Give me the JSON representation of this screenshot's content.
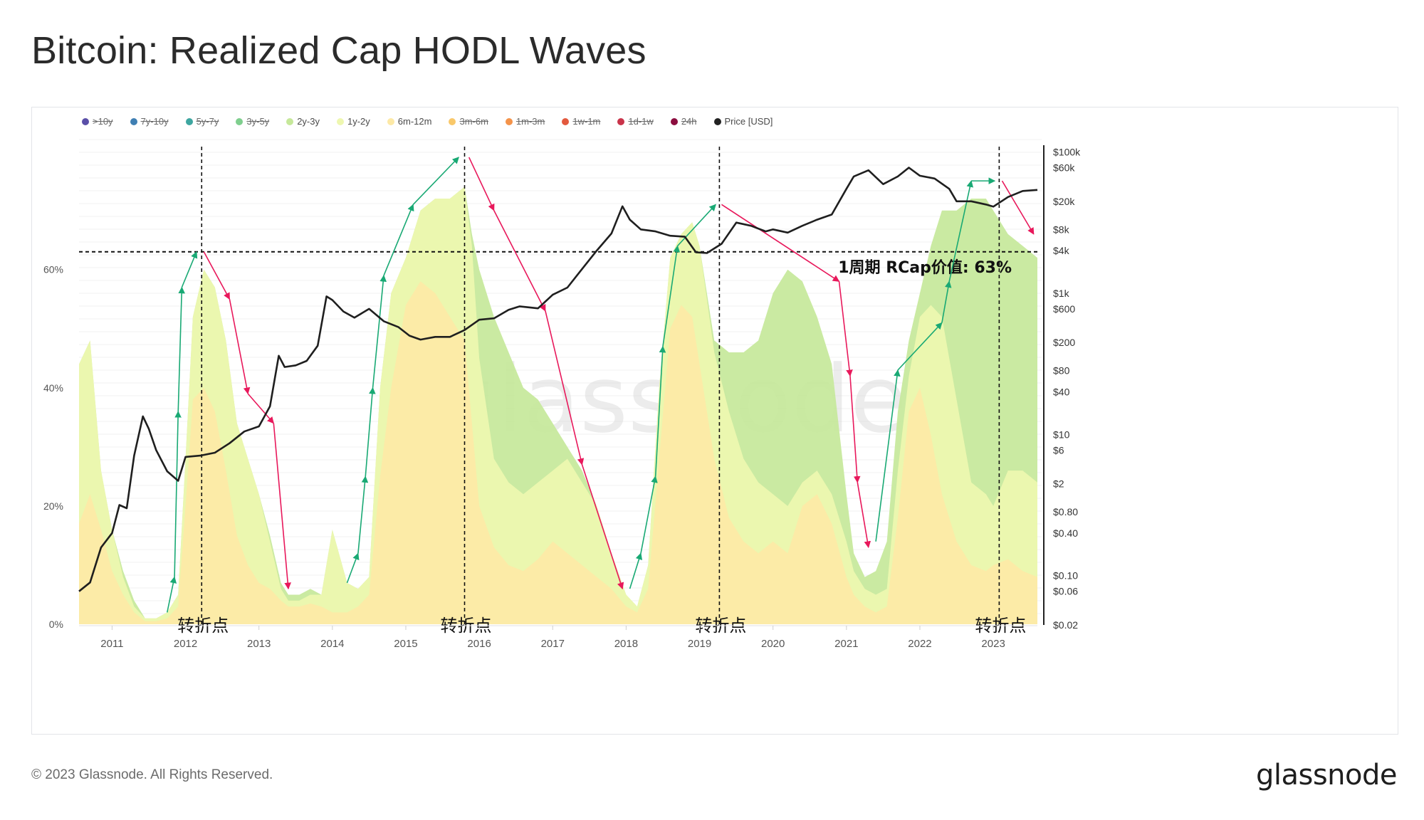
{
  "page": {
    "title": "Bitcoin: Realized Cap HODL Waves",
    "copyright": "© 2023 Glassnode. All Rights Reserved.",
    "logo": "glassnode",
    "watermark": "glassnode"
  },
  "legend": [
    {
      "label": ">10y",
      "color": "#5a4fa8",
      "active": false
    },
    {
      "label": "7y-10y",
      "color": "#3f7fb3",
      "active": false
    },
    {
      "label": "5y-7y",
      "color": "#3ea6a0",
      "active": false
    },
    {
      "label": "3y-5y",
      "color": "#7fcf8e",
      "active": false
    },
    {
      "label": "2y-3y",
      "color": "#c6e89a",
      "active": true
    },
    {
      "label": "1y-2y",
      "color": "#eef7b0",
      "active": true
    },
    {
      "label": "6m-12m",
      "color": "#fde9a6",
      "active": true
    },
    {
      "label": "3m-6m",
      "color": "#f9c86a",
      "active": false
    },
    {
      "label": "1m-3m",
      "color": "#f4934a",
      "active": false
    },
    {
      "label": "1w-1m",
      "color": "#e3593e",
      "active": false
    },
    {
      "label": "1d-1w",
      "color": "#c9344a",
      "active": false
    },
    {
      "label": "24h",
      "color": "#8c0d3f",
      "active": false
    },
    {
      "label": "Price [USD]",
      "color": "#222222",
      "active": true
    }
  ],
  "annotations": {
    "threshold_label": "1周期 RCap价值: 63%",
    "turning_point_label": "转折点",
    "turning_points_x": [
      2012.22,
      2015.8,
      2019.27,
      2023.08
    ],
    "threshold_y": 63
  },
  "chart_data": {
    "type": "area",
    "title": "Bitcoin: Realized Cap HODL Waves",
    "xlim": [
      2010.55,
      2023.6
    ],
    "ylim": [
      0,
      82
    ],
    "x_ticks": [
      "2011",
      "2012",
      "2013",
      "2014",
      "2015",
      "2016",
      "2017",
      "2018",
      "2019",
      "2020",
      "2021",
      "2022",
      "2023"
    ],
    "y_ticks_left": [
      "0%",
      "20%",
      "40%",
      "60%"
    ],
    "y_ticks_right": [
      "$100k",
      "$60k",
      "$20k",
      "$8k",
      "$4k",
      "$1k",
      "$600",
      "$200",
      "$80",
      "$40",
      "$10",
      "$6",
      "$2",
      "$0.80",
      "$0.40",
      "$0.10",
      "$0.06",
      "$0.02"
    ],
    "price_scale": "log",
    "price_range_usd": [
      0.02,
      150000
    ],
    "grid": true,
    "legend_position": "top-left",
    "series": [
      {
        "name": "6m-12m",
        "cumulative": true,
        "x": [
          2010.55,
          2010.7,
          2010.85,
          2011.0,
          2011.15,
          2011.3,
          2011.45,
          2011.6,
          2011.75,
          2011.9,
          2012.0,
          2012.1,
          2012.25,
          2012.4,
          2012.55,
          2012.7,
          2012.85,
          2013.0,
          2013.15,
          2013.3,
          2013.4,
          2013.55,
          2013.7,
          2013.85,
          2014.0,
          2014.2,
          2014.35,
          2014.5,
          2014.65,
          2014.8,
          2015.0,
          2015.2,
          2015.4,
          2015.6,
          2015.8,
          2015.9,
          2016.0,
          2016.2,
          2016.4,
          2016.6,
          2016.8,
          2017.0,
          2017.2,
          2017.4,
          2017.6,
          2017.8,
          2018.0,
          2018.15,
          2018.3,
          2018.45,
          2018.6,
          2018.75,
          2018.9,
          2019.0,
          2019.2,
          2019.4,
          2019.6,
          2019.8,
          2020.0,
          2020.2,
          2020.4,
          2020.6,
          2020.8,
          2021.0,
          2021.1,
          2021.25,
          2021.4,
          2021.55,
          2021.7,
          2021.85,
          2022.0,
          2022.15,
          2022.3,
          2022.5,
          2022.7,
          2022.9,
          2023.0,
          2023.2,
          2023.4,
          2023.6
        ],
        "values": [
          17,
          22,
          16,
          9,
          5,
          2,
          0.5,
          0.5,
          1,
          3,
          20,
          38,
          40,
          36,
          26,
          15,
          10,
          7,
          6,
          4,
          3,
          3,
          3.5,
          3,
          2,
          2,
          3,
          5,
          25,
          40,
          54,
          58,
          56,
          52,
          48,
          34,
          20,
          13,
          10,
          9,
          11,
          14,
          12,
          10,
          8,
          6,
          3,
          2,
          6,
          28,
          50,
          54,
          52,
          44,
          28,
          18,
          14,
          12,
          14,
          12,
          20,
          22,
          17,
          8,
          5,
          3,
          2,
          3,
          18,
          36,
          40,
          32,
          22,
          14,
          10,
          9,
          10,
          11,
          9,
          8
        ]
      },
      {
        "name": "1y-2y",
        "cumulative": true,
        "x": [
          2010.55,
          2010.7,
          2010.85,
          2011.0,
          2011.15,
          2011.3,
          2011.45,
          2011.6,
          2011.75,
          2011.9,
          2012.0,
          2012.1,
          2012.25,
          2012.4,
          2012.55,
          2012.7,
          2012.85,
          2013.0,
          2013.15,
          2013.3,
          2013.4,
          2013.55,
          2013.7,
          2013.85,
          2014.0,
          2014.2,
          2014.35,
          2014.5,
          2014.65,
          2014.8,
          2015.0,
          2015.2,
          2015.4,
          2015.6,
          2015.8,
          2015.9,
          2016.0,
          2016.2,
          2016.4,
          2016.6,
          2016.8,
          2017.0,
          2017.2,
          2017.4,
          2017.6,
          2017.8,
          2018.0,
          2018.15,
          2018.3,
          2018.45,
          2018.6,
          2018.75,
          2018.9,
          2019.0,
          2019.2,
          2019.4,
          2019.6,
          2019.8,
          2020.0,
          2020.2,
          2020.4,
          2020.6,
          2020.8,
          2021.0,
          2021.1,
          2021.25,
          2021.4,
          2021.55,
          2021.7,
          2021.85,
          2022.0,
          2022.15,
          2022.3,
          2022.5,
          2022.7,
          2022.9,
          2023.0,
          2023.2,
          2023.4,
          2023.6
        ],
        "values": [
          44,
          48,
          26,
          16,
          8,
          3,
          1,
          1,
          2,
          5,
          28,
          52,
          60,
          57,
          48,
          34,
          28,
          22,
          14,
          6,
          4,
          4,
          5,
          5,
          16,
          7,
          6,
          8,
          40,
          56,
          62,
          70,
          72,
          72,
          74,
          64,
          45,
          28,
          24,
          22,
          24,
          26,
          28,
          24,
          20,
          12,
          5,
          3,
          10,
          40,
          62,
          66,
          68,
          64,
          46,
          36,
          28,
          24,
          22,
          20,
          24,
          26,
          22,
          14,
          9,
          6,
          5,
          6,
          26,
          42,
          52,
          54,
          52,
          38,
          24,
          22,
          20,
          26,
          26,
          24
        ]
      },
      {
        "name": "2y-3y",
        "cumulative": true,
        "x": [
          2010.55,
          2010.7,
          2010.85,
          2011.0,
          2011.15,
          2011.3,
          2011.45,
          2011.6,
          2011.75,
          2011.9,
          2012.0,
          2012.1,
          2012.25,
          2012.4,
          2012.55,
          2012.7,
          2012.85,
          2013.0,
          2013.15,
          2013.3,
          2013.4,
          2013.55,
          2013.7,
          2013.85,
          2014.0,
          2014.2,
          2014.35,
          2014.5,
          2014.65,
          2014.8,
          2015.0,
          2015.2,
          2015.4,
          2015.6,
          2015.8,
          2015.9,
          2016.0,
          2016.2,
          2016.4,
          2016.6,
          2016.8,
          2017.0,
          2017.2,
          2017.4,
          2017.6,
          2017.8,
          2018.0,
          2018.15,
          2018.3,
          2018.45,
          2018.6,
          2018.75,
          2018.9,
          2019.0,
          2019.2,
          2019.4,
          2019.6,
          2019.8,
          2020.0,
          2020.2,
          2020.4,
          2020.6,
          2020.8,
          2021.0,
          2021.1,
          2021.25,
          2021.4,
          2021.55,
          2021.7,
          2021.85,
          2022.0,
          2022.15,
          2022.3,
          2022.5,
          2022.7,
          2022.9,
          2023.0,
          2023.2,
          2023.4,
          2023.6
        ],
        "values": [
          44,
          48,
          26,
          16,
          9,
          4,
          1,
          1,
          2,
          5,
          28,
          52,
          60,
          57,
          48,
          34,
          28,
          22,
          15,
          7,
          5,
          5,
          6,
          5,
          16,
          7,
          6,
          8,
          40,
          56,
          62,
          70,
          72,
          72,
          74,
          66,
          60,
          52,
          46,
          40,
          38,
          34,
          30,
          26,
          20,
          12,
          5,
          3,
          10,
          40,
          62,
          66,
          68,
          64,
          48,
          46,
          46,
          48,
          56,
          60,
          58,
          52,
          44,
          22,
          12,
          8,
          9,
          14,
          36,
          48,
          56,
          64,
          70,
          70,
          72,
          72,
          70,
          66,
          64,
          62
        ]
      },
      {
        "name": "Price [USD]",
        "unit": "USD",
        "x": [
          2010.55,
          2010.7,
          2010.85,
          2011.0,
          2011.1,
          2011.2,
          2011.3,
          2011.42,
          2011.5,
          2011.6,
          2011.75,
          2011.9,
          2012.0,
          2012.2,
          2012.4,
          2012.6,
          2012.8,
          2013.0,
          2013.15,
          2013.27,
          2013.35,
          2013.5,
          2013.65,
          2013.8,
          2013.92,
          2014.0,
          2014.15,
          2014.3,
          2014.5,
          2014.7,
          2014.9,
          2015.05,
          2015.2,
          2015.4,
          2015.6,
          2015.8,
          2016.0,
          2016.2,
          2016.4,
          2016.55,
          2016.8,
          2017.0,
          2017.2,
          2017.4,
          2017.6,
          2017.8,
          2017.95,
          2018.05,
          2018.2,
          2018.4,
          2018.6,
          2018.8,
          2018.95,
          2019.1,
          2019.3,
          2019.5,
          2019.7,
          2019.9,
          2020.0,
          2020.2,
          2020.4,
          2020.6,
          2020.8,
          2021.0,
          2021.1,
          2021.3,
          2021.5,
          2021.7,
          2021.85,
          2022.0,
          2022.2,
          2022.4,
          2022.5,
          2022.7,
          2022.9,
          2023.0,
          2023.2,
          2023.4,
          2023.6
        ],
        "values": [
          0.06,
          0.08,
          0.25,
          0.4,
          1,
          0.9,
          5,
          18,
          12,
          6,
          3,
          2.2,
          4.8,
          5,
          5.5,
          7.5,
          11,
          13,
          25,
          130,
          90,
          95,
          110,
          180,
          900,
          800,
          550,
          450,
          600,
          400,
          330,
          250,
          220,
          240,
          240,
          300,
          420,
          440,
          580,
          650,
          610,
          950,
          1200,
          2200,
          4000,
          7000,
          17000,
          11000,
          8000,
          7500,
          6500,
          6300,
          3800,
          3700,
          5000,
          10000,
          9000,
          7500,
          8000,
          7200,
          9000,
          11000,
          13000,
          30000,
          45000,
          55000,
          35000,
          45000,
          60000,
          46000,
          42000,
          30000,
          20000,
          20000,
          18000,
          16800,
          23000,
          28000,
          29000
        ]
      }
    ]
  }
}
